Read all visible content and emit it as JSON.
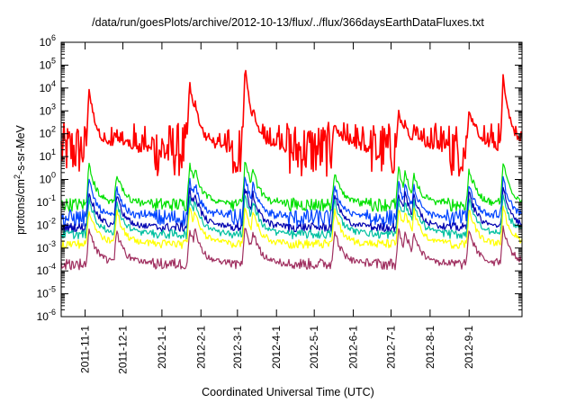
{
  "chart_data": {
    "type": "line",
    "title": "/data/run/goesPlots/archive/2012-10-13/flux/../flux/366daysEarthDataFluxes.txt",
    "xlabel": "Coordinated Universal Time (UTC)",
    "ylabel_prefix": "protons/cm",
    "ylabel_exp": "2",
    "ylabel_suffix": "-s-sr-MeV",
    "y_scale": "log",
    "ylim": [
      1e-06,
      1000000
    ],
    "xlim": [
      "2011-10-13",
      "2012-10-13"
    ],
    "grid": false,
    "y_ticks": [
      {
        "base": "10",
        "exp": "-6"
      },
      {
        "base": "10",
        "exp": "-5"
      },
      {
        "base": "10",
        "exp": "-4"
      },
      {
        "base": "10",
        "exp": "-3"
      },
      {
        "base": "10",
        "exp": "-2"
      },
      {
        "base": "10",
        "exp": "-1"
      },
      {
        "base": "10",
        "exp": "0"
      },
      {
        "base": "10",
        "exp": "1"
      },
      {
        "base": "10",
        "exp": "2"
      },
      {
        "base": "10",
        "exp": "3"
      },
      {
        "base": "10",
        "exp": "4"
      },
      {
        "base": "10",
        "exp": "5"
      },
      {
        "base": "10",
        "exp": "6"
      }
    ],
    "x_ticks": [
      "2011-11-1",
      "2011-12-1",
      "2012-1-1",
      "2012-2-1",
      "2012-3-1",
      "2012-4-1",
      "2012-5-1",
      "2012-6-1",
      "2012-7-1",
      "2012-8-1",
      "2012-9-1"
    ],
    "events": [
      {
        "date": "2011-11-04",
        "peak": 10000
      },
      {
        "date": "2011-11-26",
        "peak": 80
      },
      {
        "date": "2012-01-23",
        "peak": 20000
      },
      {
        "date": "2012-01-27",
        "peak": 3000
      },
      {
        "date": "2012-03-07",
        "peak": 100000
      },
      {
        "date": "2012-03-13",
        "peak": 1500
      },
      {
        "date": "2012-05-17",
        "peak": 300
      },
      {
        "date": "2012-07-07",
        "peak": 800
      },
      {
        "date": "2012-07-12",
        "peak": 300
      },
      {
        "date": "2012-07-19",
        "peak": 200
      },
      {
        "date": "2012-09-01",
        "peak": 1500
      },
      {
        "date": "2012-09-28",
        "peak": 30000
      }
    ],
    "series": [
      {
        "color": "#ff0000",
        "baseline": 20,
        "spread": 1.2,
        "response": 1.0
      },
      {
        "color": "#00e000",
        "baseline": 0.08,
        "spread": 0.3,
        "response": 0.2
      },
      {
        "color": "#0044ff",
        "baseline": 0.02,
        "spread": 0.4,
        "response": 0.15
      },
      {
        "color": "#0000b0",
        "baseline": 0.008,
        "spread": 0.2,
        "response": 0.12
      },
      {
        "color": "#00c0a0",
        "baseline": 0.004,
        "spread": 0.2,
        "response": 0.1
      },
      {
        "color": "#ffff00",
        "baseline": 0.0015,
        "spread": 0.2,
        "response": 0.06
      },
      {
        "color": "#a03060",
        "baseline": 0.0002,
        "spread": 0.25,
        "response": 0.05
      }
    ]
  }
}
